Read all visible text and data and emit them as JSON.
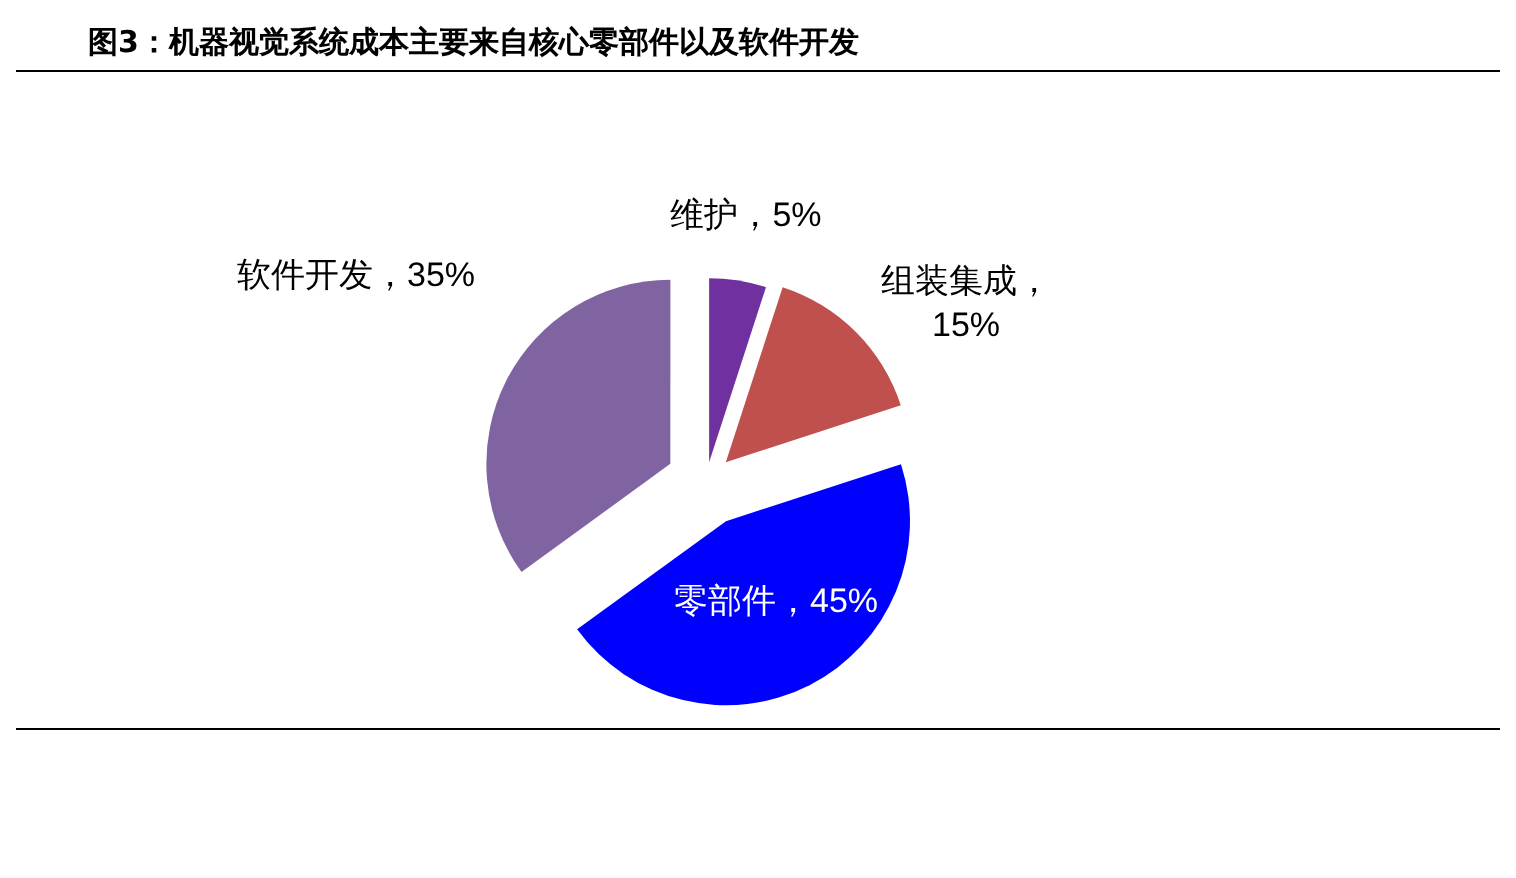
{
  "chart_data": {
    "type": "pie",
    "title": "图3：机器视觉系统成本主要来自核心零部件以及软件开发",
    "categories": [
      "维护",
      "组装集成",
      "零部件",
      "软件开发"
    ],
    "values": [
      5,
      15,
      45,
      35
    ],
    "value_labels": [
      "，5%",
      "，15%",
      "，45%",
      "，35%"
    ],
    "colors": [
      "#7030a0",
      "#c0504d",
      "#0000ff",
      "#8064a2"
    ],
    "legend": false
  }
}
